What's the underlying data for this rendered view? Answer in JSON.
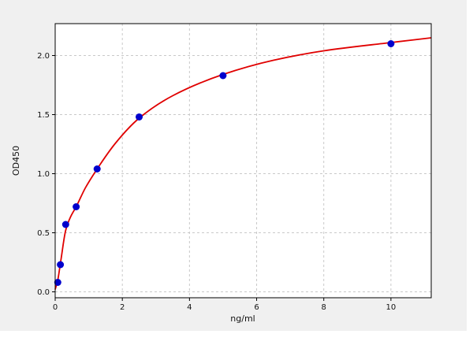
{
  "figure": {
    "background": "#f0f0f0",
    "plot_background": "#ffffff",
    "axis_color": "#000000",
    "text_color": "#111111"
  },
  "chart_data": {
    "type": "scatter",
    "title": "",
    "xlabel": "ng/ml",
    "ylabel": "OD450",
    "xlim": [
      0,
      11.2
    ],
    "ylim": [
      -0.05,
      2.27
    ],
    "xticks": [
      0,
      2,
      4,
      6,
      8,
      10
    ],
    "xtick_labels": [
      "0",
      "2",
      "4",
      "6",
      "8",
      "10"
    ],
    "yticks": [
      0,
      0.5,
      1,
      1.5,
      2
    ],
    "ytick_labels": [
      "0.0",
      "0.5",
      "1.0",
      "1.5",
      "2.0"
    ],
    "grid": true,
    "grid_style": "dashed",
    "grid_color": "#c9c9c9",
    "legend": "none",
    "series": [
      {
        "name": "standard-points",
        "type": "scatter",
        "color": "#0000cd",
        "marker_radius": 4.5,
        "points": [
          [
            0.078,
            0.08
          ],
          [
            0.156,
            0.23
          ],
          [
            0.313,
            0.57
          ],
          [
            0.625,
            0.72
          ],
          [
            1.25,
            1.04
          ],
          [
            2.5,
            1.48
          ],
          [
            5.0,
            1.83
          ],
          [
            10.0,
            2.1
          ]
        ]
      },
      {
        "name": "fit-curve",
        "type": "line",
        "color": "#e00000",
        "line_width": 1.8,
        "points": [
          [
            0,
            0.02
          ],
          [
            0.078,
            0.1
          ],
          [
            0.156,
            0.24
          ],
          [
            0.313,
            0.52
          ],
          [
            0.45,
            0.63
          ],
          [
            0.625,
            0.72
          ],
          [
            0.9,
            0.88
          ],
          [
            1.25,
            1.04
          ],
          [
            1.8,
            1.26
          ],
          [
            2.5,
            1.47
          ],
          [
            3.5,
            1.66
          ],
          [
            5.0,
            1.84
          ],
          [
            6.5,
            1.96
          ],
          [
            8.0,
            2.04
          ],
          [
            10.0,
            2.11
          ],
          [
            11.2,
            2.15
          ]
        ]
      }
    ]
  }
}
